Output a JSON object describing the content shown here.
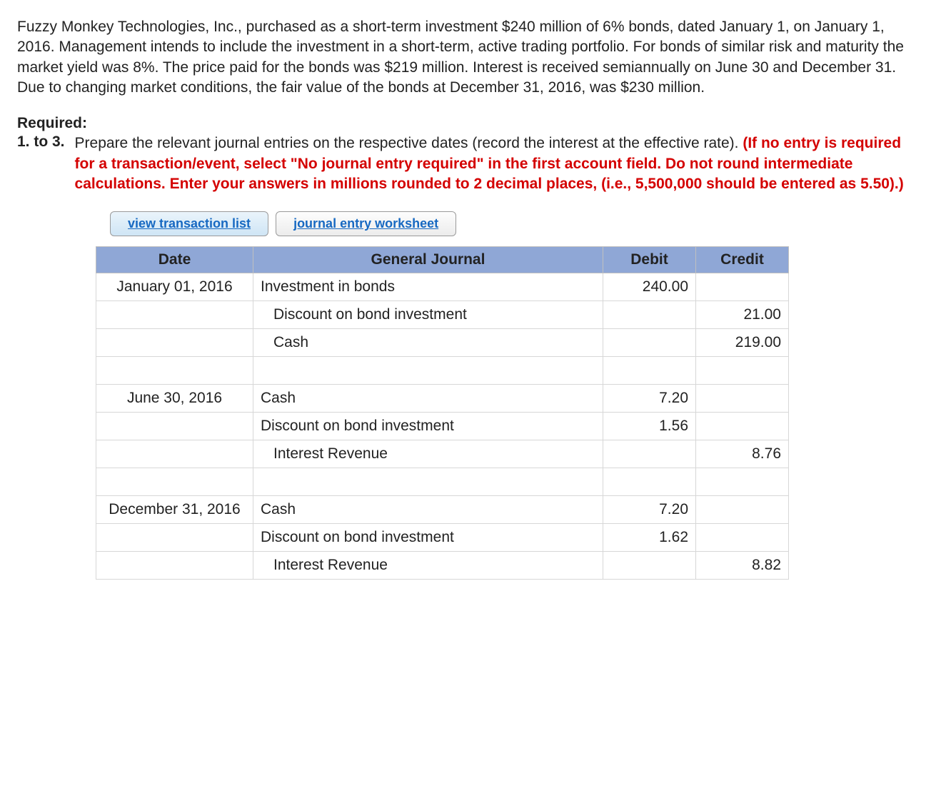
{
  "problem_text": "Fuzzy Monkey Technologies, Inc., purchased as a short-term investment $240 million of 6% bonds, dated January 1, on January 1, 2016. Management intends to include the investment in a short-term, active trading portfolio. For bonds of similar risk and maturity the market yield was 8%. The price paid for the bonds was $219 million. Interest is received semiannually on June 30 and December 31. Due to changing market conditions, the fair value of the bonds at December 31, 2016, was $230 million.",
  "required_label": "Required:",
  "req_num": "1. to 3.",
  "req_text_plain": "Prepare the relevant journal entries on the respective dates (record the interest at the effective rate). ",
  "req_text_red": "(If no entry is required for a transaction/event, select \"No journal entry required\" in the first account field. Do not round intermediate calculations. Enter your answers in millions rounded to 2 decimal places, (i.e., 5,500,000 should be entered as 5.50).)",
  "buttons": {
    "view_list": "view transaction list",
    "worksheet": "journal entry worksheet"
  },
  "table": {
    "headers": {
      "date": "Date",
      "gj": "General Journal",
      "debit": "Debit",
      "credit": "Credit"
    },
    "rows": [
      {
        "date": "January 01, 2016",
        "account": "Investment in bonds",
        "indent": 0,
        "debit": "240.00",
        "credit": ""
      },
      {
        "date": "",
        "account": "Discount on bond investment",
        "indent": 1,
        "debit": "",
        "credit": "21.00"
      },
      {
        "date": "",
        "account": "Cash",
        "indent": 1,
        "debit": "",
        "credit": "219.00"
      },
      {
        "date": "",
        "account": "",
        "indent": 0,
        "debit": "",
        "credit": ""
      },
      {
        "date": "June 30, 2016",
        "account": "Cash",
        "indent": 0,
        "debit": "7.20",
        "credit": ""
      },
      {
        "date": "",
        "account": "Discount on bond investment",
        "indent": 0,
        "debit": "1.56",
        "credit": ""
      },
      {
        "date": "",
        "account": "Interest Revenue",
        "indent": 1,
        "debit": "",
        "credit": "8.76"
      },
      {
        "date": "",
        "account": "",
        "indent": 0,
        "debit": "",
        "credit": ""
      },
      {
        "date": "December 31, 2016",
        "account": "Cash",
        "indent": 0,
        "debit": "7.20",
        "credit": ""
      },
      {
        "date": "",
        "account": "Discount on bond investment",
        "indent": 0,
        "debit": "1.62",
        "credit": ""
      },
      {
        "date": "",
        "account": "Interest Revenue",
        "indent": 1,
        "debit": "",
        "credit": "8.82"
      }
    ]
  },
  "colors": {
    "header_bg": "#8fa7d6",
    "instruction_red": "#d40000",
    "link_blue": "#1769c2"
  }
}
